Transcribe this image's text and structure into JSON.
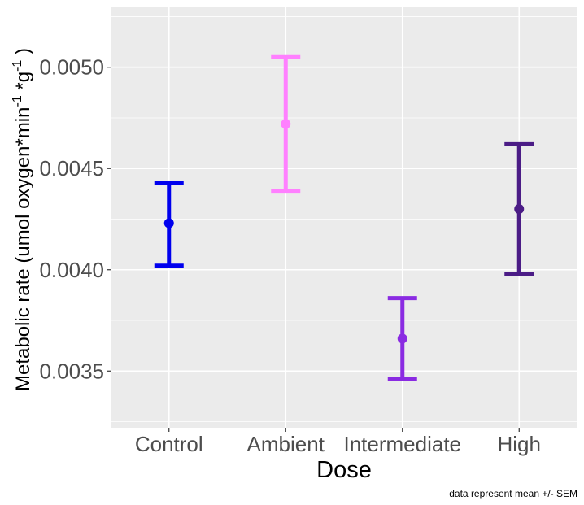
{
  "chart_data": {
    "type": "errorbar",
    "xlabel": "Dose",
    "ylabel": {
      "pre": "Metabolic rate (umol oxygen*min",
      "sup1": "-1",
      "mid": " *g",
      "sup2": "-1",
      "post": " )"
    },
    "caption": "data represent mean +/- SEM",
    "categories": [
      "Control",
      "Ambient",
      "Intermediate",
      "High"
    ],
    "points": [
      {
        "category": "Control",
        "mean": 0.00423,
        "lower": 0.00402,
        "upper": 0.00443,
        "color": "#0000ee"
      },
      {
        "category": "Ambient",
        "mean": 0.00472,
        "lower": 0.00439,
        "upper": 0.00505,
        "color": "#ff80ff"
      },
      {
        "category": "Intermediate",
        "mean": 0.00366,
        "lower": 0.00346,
        "upper": 0.00386,
        "color": "#8a2be2"
      },
      {
        "category": "High",
        "mean": 0.0043,
        "lower": 0.00398,
        "upper": 0.00462,
        "color": "#4b1c86"
      }
    ],
    "ylim": [
      0.00322,
      0.0053
    ],
    "yticks": [
      0.0035,
      0.004,
      0.0045,
      0.005
    ],
    "ytick_labels": [
      "0.0035",
      "0.0040",
      "0.0045",
      "0.0050"
    ],
    "grid": true,
    "panel_background": "#ebebeb",
    "grid_color": "#ffffff"
  }
}
